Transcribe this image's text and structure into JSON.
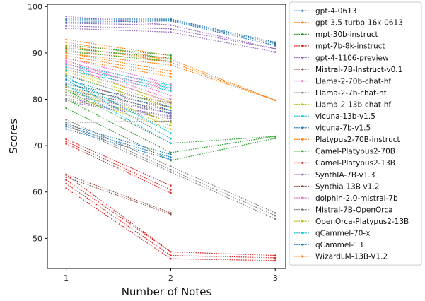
{
  "chart_data": {
    "type": "line",
    "title": "",
    "xlabel": "Number of Notes",
    "ylabel": "Scores",
    "x_ticks": [
      1,
      2,
      3
    ],
    "y_ticks": [
      50,
      60,
      70,
      80,
      90,
      100
    ],
    "xlim": [
      0.82,
      3.1
    ],
    "ylim": [
      43.5,
      100.5
    ],
    "grid": false,
    "legend_position": "outside-right",
    "line_style": "dotted",
    "palette": [
      "#1f77b4",
      "#ff7f0e",
      "#2ca02c",
      "#d62728",
      "#9467bd",
      "#8c564b",
      "#e377c2",
      "#7f7f7f",
      "#bcbd22",
      "#17becf"
    ],
    "series": [
      {
        "name": "gpt-4-0613",
        "groups": [
          [
            1,
            [
              96.6,
              97.0,
              97.3
            ]
          ],
          [
            2,
            [
              96.9,
              97.1,
              97.3
            ]
          ],
          [
            3,
            [
              91.6,
              92.0,
              92.3
            ]
          ]
        ]
      },
      {
        "name": "gpt-3.5-turbo-16k-0613",
        "groups": [
          [
            1,
            [
              89.9,
              90.6,
              91.1
            ]
          ],
          [
            2,
            [
              87.4,
              88.0,
              88.6
            ]
          ],
          [
            3,
            [
              79.8
            ]
          ]
        ]
      },
      {
        "name": "mpt-30b-instruct",
        "groups": [
          [
            1,
            [
              78.1,
              80.0,
              82.0
            ]
          ],
          [
            2,
            [
              66.8,
              68.5,
              70.5
            ]
          ],
          [
            3,
            [
              71.6,
              72.0
            ]
          ]
        ]
      },
      {
        "name": "mpt-7b-8k-instruct",
        "groups": [
          [
            1,
            [
              60.8,
              61.8,
              62.6,
              63.7
            ]
          ],
          [
            2,
            [
              45.6,
              46.3,
              47.1
            ]
          ],
          [
            3,
            [
              45.2,
              45.8,
              46.3
            ]
          ]
        ]
      },
      {
        "name": "gpt-4-1106-preview",
        "groups": [
          [
            1,
            [
              95.3,
              95.8,
              96.4,
              97.9
            ]
          ],
          [
            2,
            [
              94.5,
              95.2,
              96.0
            ]
          ],
          [
            3,
            [
              90.2,
              90.9
            ]
          ]
        ]
      },
      {
        "name": "Mistral-7B-Instruct-v0.1",
        "groups": [
          [
            1,
            [
              82.0,
              82.6,
              83.2
            ]
          ],
          [
            2,
            [
              77.6,
              78.3,
              79.2
            ]
          ],
          [
            3,
            []
          ]
        ]
      },
      {
        "name": "Llama-2-70b-chat-hf",
        "groups": [
          [
            1,
            [
              87.5,
              88.1,
              88.9
            ]
          ],
          [
            2,
            [
              82.0,
              82.6,
              83.3
            ]
          ],
          [
            3,
            []
          ]
        ]
      },
      {
        "name": "Llama-2-7b-chat-hf",
        "groups": [
          [
            1,
            [
              75.0,
              79.8,
              81.5
            ]
          ],
          [
            2,
            [
              75.3,
              76.2,
              77.1
            ]
          ],
          [
            3,
            []
          ]
        ]
      },
      {
        "name": "Llama-2-13b-chat-hf",
        "groups": [
          [
            1,
            [
              81.0,
              82.0,
              82.8
            ]
          ],
          [
            2,
            [
              73.6,
              74.3,
              75.0
            ]
          ],
          [
            3,
            []
          ]
        ]
      },
      {
        "name": "vicuna-13b-v1.5",
        "groups": [
          [
            1,
            [
              83.0,
              84.2,
              84.9
            ]
          ],
          [
            2,
            [
              70.5,
              71.5,
              72.7
            ]
          ],
          [
            3,
            []
          ]
        ]
      },
      {
        "name": "vicuna-7b-v1.5",
        "groups": [
          [
            1,
            [
              83.5,
              84.3,
              85.2
            ]
          ],
          [
            2,
            [
              76.8,
              77.6,
              78.3
            ]
          ],
          [
            3,
            []
          ]
        ]
      },
      {
        "name": "Platypus2-70B-instruct",
        "groups": [
          [
            1,
            [
              91.5,
              92.3,
              92.9
            ]
          ],
          [
            2,
            [
              88.1,
              88.7,
              89.4
            ]
          ],
          [
            3,
            []
          ]
        ]
      },
      {
        "name": "Camel-Platypus2-70B",
        "groups": [
          [
            1,
            [
              90.3,
              91.0,
              91.7
            ]
          ],
          [
            2,
            [
              88.2,
              88.9,
              89.5
            ]
          ],
          [
            3,
            []
          ]
        ]
      },
      {
        "name": "Camel-Platypus2-13B",
        "groups": [
          [
            1,
            [
              70.4,
              70.9,
              71.4
            ]
          ],
          [
            2,
            [
              59.8,
              60.5,
              61.4
            ]
          ],
          [
            3,
            []
          ]
        ]
      },
      {
        "name": "SynthIA-7B-v1.3",
        "groups": [
          [
            1,
            [
              79.5,
              80.2,
              80.9
            ]
          ],
          [
            2,
            [
              75.8,
              76.4,
              77.0
            ]
          ],
          [
            3,
            []
          ]
        ]
      },
      {
        "name": "Synthia-13B-v1.2",
        "groups": [
          [
            1,
            [
              63.2,
              63.8
            ]
          ],
          [
            2,
            [
              55.2,
              55.5
            ]
          ],
          [
            3,
            []
          ]
        ]
      },
      {
        "name": "dolphin-2.0-mistral-7b",
        "groups": [
          [
            1,
            [
              87.2,
              87.8,
              88.4
            ]
          ],
          [
            2,
            [
              79.3,
              80.0,
              80.8
            ]
          ],
          [
            3,
            []
          ]
        ]
      },
      {
        "name": "Mistral-7B-OpenOrca",
        "groups": [
          [
            1,
            [
              74.5,
              75.0,
              75.6
            ]
          ],
          [
            2,
            [
              64.3,
              64.8,
              65.5
            ]
          ],
          [
            3,
            [
              54.2,
              54.9,
              55.5
            ]
          ]
        ]
      },
      {
        "name": "OpenOrca-Platypus2-13B",
        "groups": [
          [
            1,
            [
              85.4,
              86.0,
              86.6
            ]
          ],
          [
            2,
            [
              78.1,
              78.8,
              79.5
            ]
          ],
          [
            3,
            []
          ]
        ]
      },
      {
        "name": "qCammel-70-x",
        "groups": [
          [
            1,
            [
              86.3,
              86.9,
              87.6
            ]
          ],
          [
            2,
            [
              81.8,
              82.4,
              83.0
            ]
          ],
          [
            3,
            []
          ]
        ]
      },
      {
        "name": "qCammel-13",
        "groups": [
          [
            1,
            [
              73.6,
              74.1,
              74.6
            ]
          ],
          [
            2,
            [
              67.0,
              67.5,
              68.1
            ]
          ],
          [
            3,
            []
          ]
        ]
      },
      {
        "name": "WizardLM-13B-V1.2",
        "groups": [
          [
            1,
            [
              88.8,
              89.4,
              90.0
            ]
          ],
          [
            2,
            [
              84.9,
              85.5,
              86.1
            ]
          ],
          [
            3,
            []
          ]
        ]
      }
    ]
  }
}
